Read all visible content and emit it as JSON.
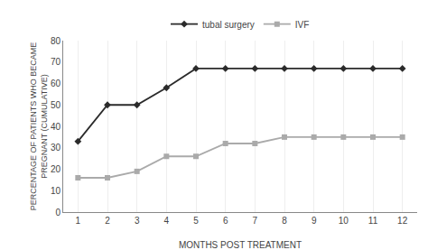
{
  "chart_data": {
    "type": "line",
    "x": [
      1,
      2,
      3,
      4,
      5,
      6,
      7,
      8,
      9,
      10,
      11,
      12
    ],
    "series": [
      {
        "name": "tubal surgery",
        "color": "#2b2b2b",
        "marker": "diamond",
        "values": [
          33,
          50,
          50,
          58,
          67,
          67,
          67,
          67,
          67,
          67,
          67,
          67
        ]
      },
      {
        "name": "IVF",
        "color": "#aaaaaa",
        "marker": "square",
        "values": [
          16,
          16,
          19,
          26,
          26,
          32,
          32,
          35,
          35,
          35,
          35,
          35
        ]
      }
    ],
    "xlabel": "MONTHS POST TREATMENT",
    "ylabel": "PERCENTAGE OF PATIENTS WHO BECAME\nPREGNANT (CUMULATIVE)",
    "xlim": [
      0.5,
      12.5
    ],
    "xticks": [
      1,
      2,
      3,
      4,
      5,
      6,
      7,
      8,
      9,
      10,
      11,
      12
    ],
    "ylim": [
      0,
      80
    ],
    "yticks": [
      0,
      10,
      20,
      30,
      40,
      50,
      60,
      70,
      80
    ],
    "grid": "x",
    "legend": "top"
  }
}
